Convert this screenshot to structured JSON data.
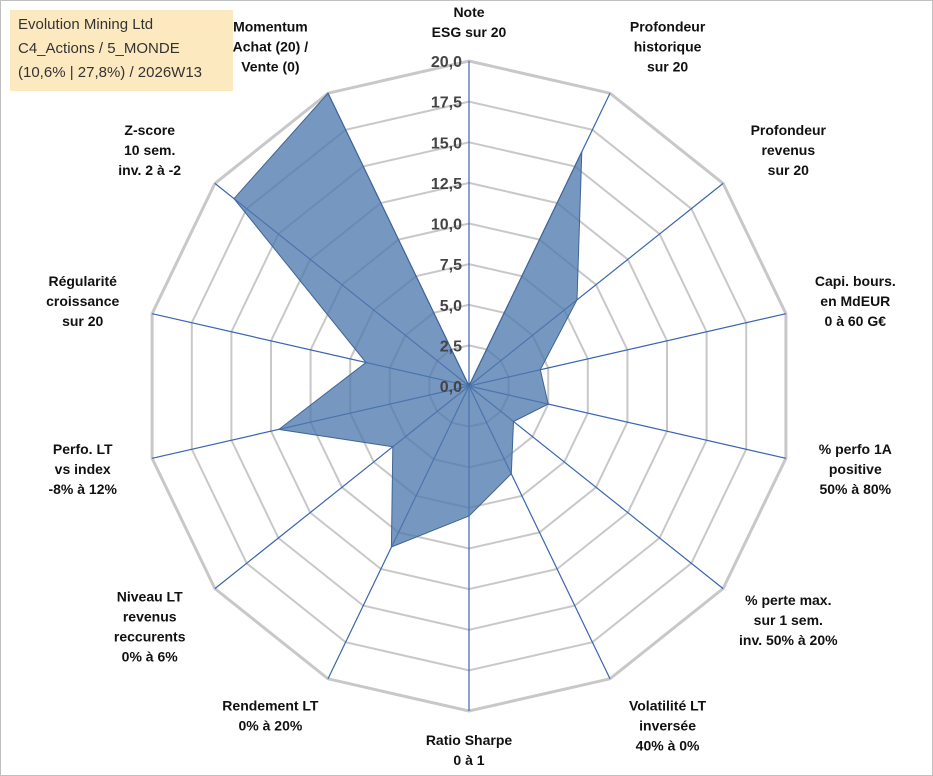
{
  "header": {
    "line1": "Evolution Mining Ltd",
    "line2": "C4_Actions / 5_MONDE",
    "line3": "(10,6% | 27,8%) / 2026W13"
  },
  "colors": {
    "fill": "#4f7aad",
    "spoke": "#3b64b0",
    "grid": "#c8c8c8",
    "infobox": "#fde9c0"
  },
  "chart_data": {
    "type": "radar",
    "title": "Evolution Mining Ltd",
    "rmin": 0,
    "rmax": 20,
    "ticks": [
      "0,0",
      "2,5",
      "5,0",
      "7,5",
      "10,0",
      "12,5",
      "15,0",
      "17,5",
      "20,0"
    ],
    "axes": [
      {
        "label": [
          "Note",
          "ESG sur 20"
        ],
        "value": 0
      },
      {
        "label": [
          "Profondeur",
          "historique",
          "sur 20"
        ],
        "value": 16
      },
      {
        "label": [
          "Profondeur",
          "revenus",
          "sur 20"
        ],
        "value": 8.5
      },
      {
        "label": [
          "Capi. bours.",
          "en MdEUR",
          "0 à 60 G€"
        ],
        "value": 4.5
      },
      {
        "label": [
          "% perfo 1A",
          "positive",
          "50% à 80%"
        ],
        "value": 5
      },
      {
        "label": [
          "% perte max.",
          "sur 1 sem.",
          "inv. 50% à 20%"
        ],
        "value": 3.5
      },
      {
        "label": [
          "Volatilité LT",
          "inversée",
          "40% à 0%"
        ],
        "value": 6
      },
      {
        "label": [
          "Ratio Sharpe",
          "0 à 1"
        ],
        "value": 8
      },
      {
        "label": [
          "Rendement LT",
          "0% à 20%"
        ],
        "value": 11
      },
      {
        "label": [
          "Niveau LT",
          "revenus",
          "reccurents",
          "0% à 6%"
        ],
        "value": 6
      },
      {
        "label": [
          "Perfo. LT",
          "vs index",
          "-8% à 12%"
        ],
        "value": 12
      },
      {
        "label": [
          "Régularité",
          "croissance",
          "sur 20"
        ],
        "value": 6.5
      },
      {
        "label": [
          "Z-score",
          "10 sem.",
          "inv. 2 à -2"
        ],
        "value": 18.5
      },
      {
        "label": [
          "Momentum",
          "Achat (20) /",
          "Vente (0)"
        ],
        "value": 20
      }
    ]
  }
}
